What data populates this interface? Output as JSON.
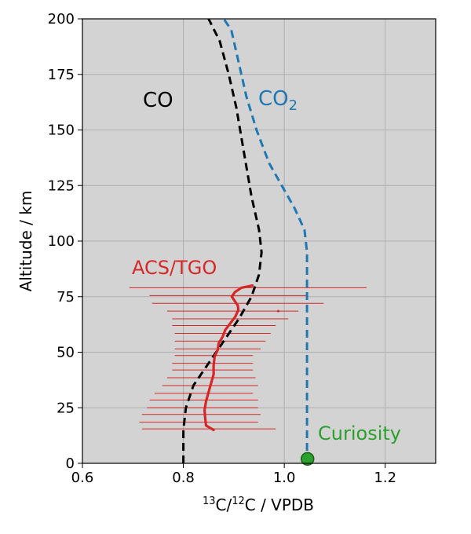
{
  "chart_data": {
    "type": "line",
    "xlabel_iso1": "13",
    "xlabel_mid": "C/",
    "xlabel_iso2": "12",
    "xlabel_tail": "C / VPDB",
    "ylabel": "Altitude / km",
    "xlim": [
      0.6,
      1.3
    ],
    "ylim": [
      0,
      200
    ],
    "x_ticks": [
      "0.6",
      "0.8",
      "1.0",
      "1.2"
    ],
    "x_tick_values": [
      0.6,
      0.8,
      1.0,
      1.2
    ],
    "y_ticks": [
      "0",
      "25",
      "50",
      "75",
      "100",
      "125",
      "150",
      "175",
      "200"
    ],
    "y_tick_values": [
      0,
      25,
      50,
      75,
      100,
      125,
      150,
      175,
      200
    ],
    "grid": true,
    "background": "#d3d3d3",
    "series": [
      {
        "name": "CO",
        "color": "#000000",
        "style": "dashed",
        "x": [
          0.8,
          0.8,
          0.805,
          0.82,
          0.85,
          0.88,
          0.91,
          0.935,
          0.95,
          0.955,
          0.95,
          0.935,
          0.92,
          0.905,
          0.89,
          0.872,
          0.85
        ],
        "y": [
          0,
          15,
          25,
          35,
          45,
          55,
          65,
          75,
          85,
          95,
          105,
          120,
          140,
          160,
          175,
          190,
          200
        ]
      },
      {
        "name": "CO₂",
        "color": "#1f77b4",
        "style": "dashed",
        "x": [
          1.045,
          1.045,
          1.045,
          1.045,
          1.04,
          1.02,
          0.995,
          0.97,
          0.945,
          0.925,
          0.91,
          0.895,
          0.88
        ],
        "y": [
          0,
          50,
          80,
          95,
          105,
          115,
          125,
          135,
          150,
          165,
          180,
          195,
          200
        ]
      },
      {
        "name": "ACS/TGO",
        "color": "#d62728",
        "style": "solid",
        "x": [
          0.86,
          0.845,
          0.843,
          0.842,
          0.845,
          0.85,
          0.855,
          0.86,
          0.86,
          0.862,
          0.868,
          0.87,
          0.878,
          0.883,
          0.893,
          0.903,
          0.909,
          0.908,
          0.902,
          0.896,
          0.902,
          0.915,
          0.937
        ],
        "y": [
          15,
          17,
          21,
          24,
          28,
          32,
          36,
          40,
          44,
          48,
          51,
          54,
          57,
          60,
          63,
          66,
          69,
          71,
          73,
          75,
          77,
          79,
          80
        ]
      }
    ],
    "acs_error_bars": [
      {
        "y": 15.5,
        "xmin": 0.718,
        "xmax": 0.983
      },
      {
        "y": 18.5,
        "xmin": 0.713,
        "xmax": 0.948
      },
      {
        "y": 22,
        "xmin": 0.718,
        "xmax": 0.953
      },
      {
        "y": 25,
        "xmin": 0.728,
        "xmax": 0.948
      },
      {
        "y": 28.5,
        "xmin": 0.733,
        "xmax": 0.948
      },
      {
        "y": 31.5,
        "xmin": 0.743,
        "xmax": 0.938
      },
      {
        "y": 35,
        "xmin": 0.758,
        "xmax": 0.948
      },
      {
        "y": 38.5,
        "xmin": 0.768,
        "xmax": 0.943
      },
      {
        "y": 42,
        "xmin": 0.778,
        "xmax": 0.938
      },
      {
        "y": 45,
        "xmin": 0.778,
        "xmax": 0.938
      },
      {
        "y": 48.5,
        "xmin": 0.783,
        "xmax": 0.938
      },
      {
        "y": 51.5,
        "xmin": 0.783,
        "xmax": 0.953
      },
      {
        "y": 55,
        "xmin": 0.783,
        "xmax": 0.963
      },
      {
        "y": 58.5,
        "xmin": 0.783,
        "xmax": 0.973
      },
      {
        "y": 62,
        "xmin": 0.778,
        "xmax": 0.983
      },
      {
        "y": 65,
        "xmin": 0.778,
        "xmax": 1.008
      },
      {
        "y": 68.5,
        "xmin": 0.768,
        "xmax": 1.028
      },
      {
        "y": 72,
        "xmin": 0.738,
        "xmax": 1.078
      },
      {
        "y": 75.5,
        "xmin": 0.733,
        "xmax": 1.043
      },
      {
        "y": 79,
        "xmin": 0.693,
        "xmax": 1.163
      }
    ],
    "stray_point": {
      "x": 0.988,
      "y": 68.5
    },
    "curiosity_point": {
      "x": 1.046,
      "y": 2,
      "color": "#2ca02c"
    },
    "annotations": {
      "co": "CO",
      "co2_main": "CO",
      "co2_sub": "2",
      "acs": "ACS/TGO",
      "curiosity": "Curiosity"
    }
  }
}
